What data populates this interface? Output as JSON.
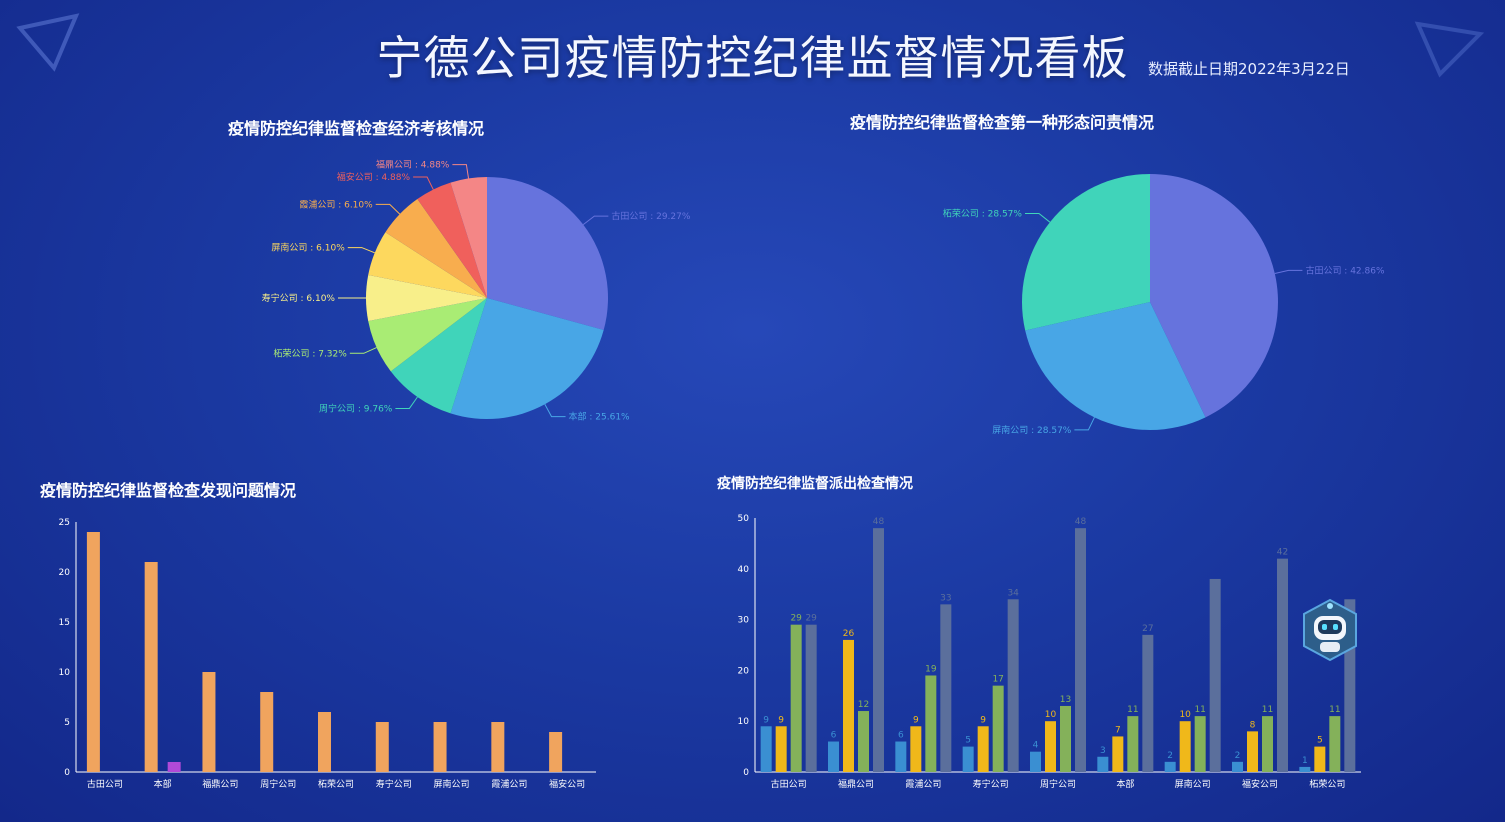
{
  "header": {
    "title": "宁德公司疫情防控纪律监督情况看板",
    "date": "数据截止日期2022年3月22日"
  },
  "panels": {
    "p1_title": "疫情防控纪律监督检查经济考核情况",
    "p2_title": "疫情防控纪律监督检查第一种形态问责情况",
    "p3_title": "疫情防控纪律监督检查发现问题情况",
    "p4_title": "疫情防控纪律监督派出检查情况"
  },
  "colors": {
    "orange": "#f0a45e",
    "purple": "#b04ad8",
    "blue": "#3a8fd2",
    "yellow": "#f0b81a",
    "green": "#84b15a",
    "gray": "#5b6f9c"
  },
  "icons": {
    "robot": "robot-assistant-icon"
  },
  "chart_data": [
    {
      "type": "pie",
      "title": "疫情防控纪律监督检查经济考核情况",
      "slices": [
        {
          "label": "古田公司 : 29.27%",
          "value": 29.27,
          "color": "#6673dd"
        },
        {
          "label": "本部 : 25.61%",
          "value": 25.61,
          "color": "#48a6e6"
        },
        {
          "label": "周宁公司 : 9.76%",
          "value": 9.76,
          "color": "#40d4ba"
        },
        {
          "label": "柘荣公司 : 7.32%",
          "value": 7.32,
          "color": "#a9ec74"
        },
        {
          "label": "寿宁公司 : 6.10%",
          "value": 6.1,
          "color": "#f8ef8a"
        },
        {
          "label": "屏南公司 : 6.10%",
          "value": 6.1,
          "color": "#fdd85e"
        },
        {
          "label": "霞浦公司 : 6.10%",
          "value": 6.1,
          "color": "#f8ad4e"
        },
        {
          "label": "福安公司 : 4.88%",
          "value": 4.88,
          "color": "#f0605c"
        },
        {
          "label": "福鼎公司 : 4.88%",
          "value": 4.88,
          "color": "#f48686"
        }
      ]
    },
    {
      "type": "pie",
      "title": "疫情防控纪律监督检查第一种形态问责情况",
      "slices": [
        {
          "label": "古田公司 : 42.86%",
          "value": 42.86,
          "color": "#6673dd"
        },
        {
          "label": "屏南公司 : 28.57%",
          "value": 28.57,
          "color": "#48a6e6"
        },
        {
          "label": "柘荣公司 : 28.57%",
          "value": 28.57,
          "color": "#40d4ba"
        }
      ]
    },
    {
      "type": "bar",
      "title": "疫情防控纪律监督检查发现问题情况",
      "categories": [
        "古田公司",
        "本部",
        "福鼎公司",
        "周宁公司",
        "柘荣公司",
        "寿宁公司",
        "屏南公司",
        "霞浦公司",
        "福安公司"
      ],
      "series": [
        {
          "values": [
            24,
            21,
            10,
            8,
            6,
            5,
            5,
            5,
            4
          ],
          "color": "#f0a45e"
        },
        {
          "values": [
            0,
            1,
            0,
            0,
            0,
            0,
            0,
            0,
            0
          ],
          "color": "#b04ad8"
        }
      ],
      "ylim": [
        0,
        25
      ],
      "yticks": [
        0,
        5,
        10,
        15,
        20,
        25
      ]
    },
    {
      "type": "bar",
      "title": "疫情防控纪律监督派出检查情况",
      "categories": [
        "古田公司",
        "福鼎公司",
        "霞浦公司",
        "寿宁公司",
        "周宁公司",
        "本部",
        "屏南公司",
        "福安公司",
        "柘荣公司"
      ],
      "series": [
        {
          "values": [
            9,
            6,
            6,
            5,
            4,
            3,
            2,
            2,
            1
          ],
          "color": "#3a8fd2"
        },
        {
          "values": [
            9,
            26,
            9,
            9,
            10,
            7,
            10,
            8,
            5
          ],
          "color": "#f0b81a"
        },
        {
          "values": [
            29,
            12,
            19,
            17,
            13,
            11,
            11,
            11,
            11
          ],
          "color": "#84b15a"
        },
        {
          "values": [
            29,
            48,
            33,
            34,
            48,
            27,
            38,
            42,
            34
          ],
          "color": "#5b6f9c"
        }
      ],
      "value_labels": [
        [
          9,
          6,
          6,
          5,
          4,
          3,
          2,
          2,
          1
        ],
        [
          9,
          26,
          9,
          9,
          10,
          7,
          10,
          8,
          5
        ],
        [
          29,
          12,
          19,
          17,
          13,
          11,
          11,
          11,
          11
        ],
        [
          29,
          48,
          33,
          34,
          48,
          27,
          "",
          42,
          ""
        ]
      ],
      "ylim": [
        0,
        50
      ],
      "yticks": [
        0,
        10,
        20,
        30,
        40,
        50
      ]
    }
  ]
}
